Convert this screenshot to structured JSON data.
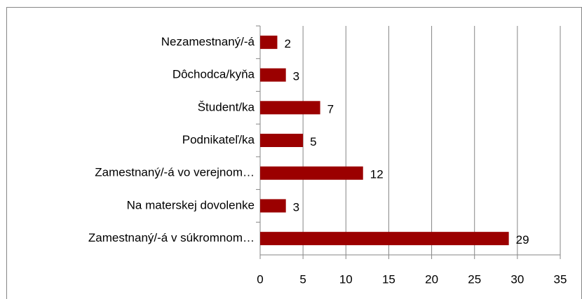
{
  "chart_data": {
    "type": "bar",
    "orientation": "horizontal",
    "categories": [
      "Nezamestnaný/-á",
      "Dôchodca/kyňa",
      "Študent/ka",
      "Podnikateľ/ka",
      "Zamestnaný/-á vo verejnom…",
      "Na materskej dovolenke",
      "Zamestnaný/-á v súkromnom…"
    ],
    "values": [
      2,
      3,
      7,
      5,
      12,
      3,
      29
    ],
    "color": "#9b0000",
    "xlim": [
      0,
      35
    ],
    "xticks": [
      0,
      5,
      10,
      15,
      20,
      25,
      30,
      35
    ],
    "grid": true
  }
}
